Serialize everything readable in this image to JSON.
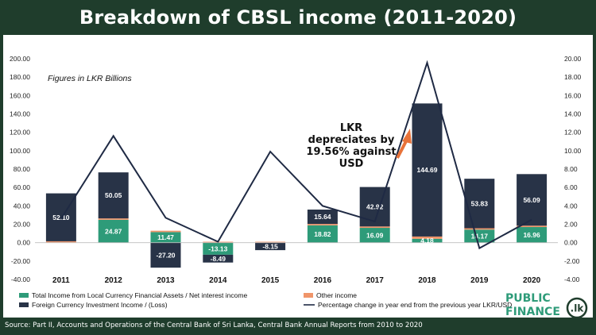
{
  "header": {
    "title": "Breakdown of CBSL income (2011-2020)"
  },
  "chart_data": {
    "type": "bar",
    "title": "Breakdown of CBSL income (2011-2020)",
    "subtitle": "Figures in LKR Billions",
    "categories": [
      "2011",
      "2012",
      "2013",
      "2014",
      "2015",
      "2016",
      "2017",
      "2018",
      "2019",
      "2020"
    ],
    "ylim_left": [
      -40,
      200
    ],
    "ylim_right": [
      -4,
      20
    ],
    "left_ticks": [
      "200.00",
      "180.00",
      "160.00",
      "140.00",
      "120.00",
      "100.00",
      "80.00",
      "60.00",
      "40.00",
      "20.00",
      "0.00",
      "-20.00",
      "-40.00"
    ],
    "right_ticks": [
      "20.00",
      "18.00",
      "16.00",
      "14.00",
      "12.00",
      "10.00",
      "8.00",
      "6.00",
      "4.00",
      "2.00",
      "0.00",
      "-2.00",
      "-4.00"
    ],
    "series": [
      {
        "name": "Total Income from Local Currency Financial Assets / Net interest income",
        "color": "#2e9b79",
        "values": [
          0,
          24.87,
          11.47,
          -13.13,
          0,
          18.82,
          16.09,
          4.18,
          14.17,
          16.96
        ],
        "labels": [
          "",
          "24.87",
          "11.47",
          "-13.13",
          "",
          "18.82",
          "16.09",
          "4.18",
          "14.17",
          "16.96"
        ]
      },
      {
        "name": "Other income",
        "color": "#f0956a",
        "values": [
          1.5,
          1.5,
          1.5,
          1.0,
          1.0,
          1.5,
          1.5,
          2.5,
          1.5,
          1.5
        ]
      },
      {
        "name": "Foreign Currency Investment Income / (Loss)",
        "color": "#283347",
        "values": [
          52.1,
          50.05,
          -27.2,
          -8.49,
          -8.15,
          15.64,
          42.92,
          144.69,
          53.83,
          56.09
        ],
        "labels": [
          "52.10",
          "50.05",
          "-27.20",
          "-8.49",
          "-8.15",
          "15.64",
          "42.92",
          "144.69",
          "53.83",
          "56.09"
        ]
      },
      {
        "name": "Percentage change in year end from the previous year LKR/USD",
        "color": "#1f2a44",
        "axis": "right",
        "type": "line",
        "values": [
          2.6,
          11.6,
          2.7,
          0.1,
          9.9,
          4.0,
          2.3,
          19.56,
          -0.6,
          2.5
        ]
      }
    ],
    "annotation": {
      "lines": [
        "LKR",
        "depreciates by",
        "19.56% against",
        "USD"
      ]
    }
  },
  "footer": {
    "source": "Source: Part II, Accounts and Operations of the Central Bank of Sri Lanka, Central Bank Annual Reports from 2010 to 2020"
  },
  "brand": {
    "line1": "PUBLIC",
    "line2": "FINANCE",
    "badge": ".lk"
  }
}
